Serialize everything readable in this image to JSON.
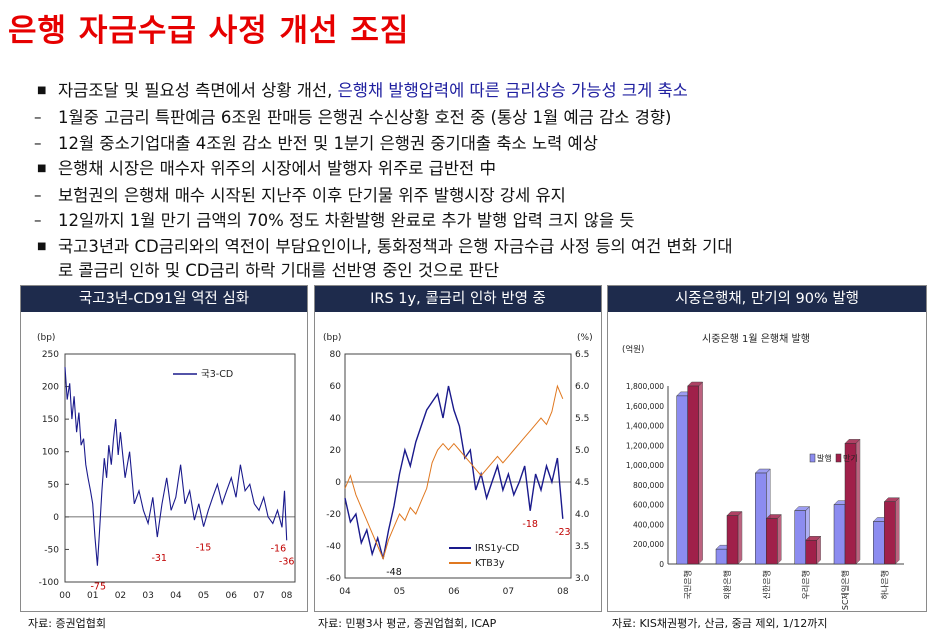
{
  "title": "은행 자금수급 사정 개선 조짐",
  "bullets": [
    {
      "marker": "square",
      "text": "자금조달 및 필요성 측면에서 상황 개선, ",
      "highlight": "은행채 발행압력에 따른 금리상승 가능성 크게 축소"
    },
    {
      "marker": "dash",
      "text": "1월중 고금리 특판예금 6조원 판매등 은행권 수신상황 호전 중 (통상 1월 예금 감소 경향)"
    },
    {
      "marker": "dash",
      "text": "12월 중소기업대출 4조원 감소 반전 및 1분기 은행권 중기대출 축소 노력 예상"
    },
    {
      "marker": "square",
      "text": "은행채 시장은 매수자 위주의 시장에서 발행자 위주로 급반전 中"
    },
    {
      "marker": "dash",
      "text": "보험권의 은행채 매수 시작된 지난주 이후 단기물 위주 발행시장 강세 유지"
    },
    {
      "marker": "dash",
      "text": "12일까지 1월 만기 금액의 70% 정도 차환발행 완료로 추가 발행 압력 크지 않을 듯"
    },
    {
      "marker": "square",
      "text": "국고3년과 CD금리와의 역전이 부담요인이나, 통화정책과 은행 자금수급 사정 등의 여건 변화 기대",
      "continuation": "로 콜금리 인하 및 CD금리 하락 기대를 선반영 중인 것으로 판단"
    }
  ],
  "panels": [
    {
      "header": "국고3년-CD91일 역전 심화",
      "source": "자료: 증권업협회"
    },
    {
      "header": "IRS 1y, 콜금리 인하 반영 중",
      "source": "자료: 민평3사 평균, 증권업협회, ICAP"
    },
    {
      "header": "시중은행채, 만기의 90% 발행",
      "source": "자료: KIS채권평가, 산금, 중금 제외, 1/12까지"
    }
  ],
  "chart_data": [
    {
      "type": "line",
      "unit_label": "(bp)",
      "ylim": [
        -100,
        250
      ],
      "yticks": [
        250,
        200,
        150,
        100,
        50,
        0,
        -50,
        -100
      ],
      "xticks": [
        "00",
        "01",
        "02",
        "03",
        "04",
        "05",
        "06",
        "07",
        "08"
      ],
      "series": [
        {
          "name": "국3-CD",
          "color": "#1a1a8c",
          "x": [
            2000.0,
            2000.08,
            2000.17,
            2000.25,
            2000.33,
            2000.42,
            2000.5,
            2000.58,
            2000.67,
            2000.75,
            2000.83,
            2000.92,
            2001.0,
            2001.08,
            2001.17,
            2001.25,
            2001.33,
            2001.42,
            2001.5,
            2001.58,
            2001.67,
            2001.75,
            2001.83,
            2001.92,
            2002.0,
            2002.17,
            2002.33,
            2002.5,
            2002.67,
            2002.83,
            2003.0,
            2003.17,
            2003.33,
            2003.5,
            2003.67,
            2003.83,
            2004.0,
            2004.17,
            2004.33,
            2004.5,
            2004.67,
            2004.83,
            2005.0,
            2005.17,
            2005.33,
            2005.5,
            2005.67,
            2005.83,
            2006.0,
            2006.17,
            2006.33,
            2006.5,
            2006.67,
            2006.83,
            2007.0,
            2007.17,
            2007.33,
            2007.5,
            2007.67,
            2007.83,
            2007.92,
            2008.0
          ],
          "y": [
            230,
            180,
            205,
            150,
            185,
            130,
            160,
            110,
            120,
            80,
            60,
            40,
            20,
            -30,
            -75,
            -20,
            40,
            90,
            60,
            110,
            80,
            120,
            150,
            95,
            130,
            60,
            100,
            20,
            40,
            10,
            -10,
            30,
            -31,
            20,
            60,
            10,
            30,
            80,
            20,
            40,
            -5,
            20,
            -15,
            10,
            30,
            50,
            20,
            40,
            60,
            30,
            80,
            40,
            50,
            20,
            10,
            30,
            0,
            -10,
            10,
            -16,
            40,
            -36
          ]
        }
      ],
      "annotations": [
        {
          "label": "-75",
          "x": 2001.2,
          "y": -75
        },
        {
          "label": "-31",
          "x": 2003.4,
          "y": -31
        },
        {
          "label": "-15",
          "x": 2005.0,
          "y": -15
        },
        {
          "label": "-16",
          "x": 2007.7,
          "y": -16
        },
        {
          "label": "-36",
          "x": 2008.0,
          "y": -36
        }
      ]
    },
    {
      "type": "line",
      "left_unit_label": "(bp)",
      "right_unit_label": "(%)",
      "ylim_left": [
        -60,
        80
      ],
      "yticks_left": [
        80,
        60,
        40,
        20,
        0,
        -20,
        -40,
        -60
      ],
      "ylim_right": [
        3.0,
        6.5
      ],
      "yticks_right": [
        "6.5",
        "6.0",
        "5.5",
        "5.0",
        "4.5",
        "4.0",
        "3.5",
        "3.0"
      ],
      "xticks": [
        "04",
        "05",
        "06",
        "07",
        "08"
      ],
      "series": [
        {
          "name": "IRS1y-CD",
          "axis": "left",
          "color": "#1a1a8c",
          "x": [
            2004.0,
            2004.1,
            2004.2,
            2004.3,
            2004.4,
            2004.5,
            2004.6,
            2004.7,
            2004.8,
            2004.9,
            2005.0,
            2005.1,
            2005.2,
            2005.3,
            2005.4,
            2005.5,
            2005.6,
            2005.7,
            2005.8,
            2005.9,
            2006.0,
            2006.1,
            2006.2,
            2006.3,
            2006.4,
            2006.5,
            2006.6,
            2006.7,
            2006.8,
            2006.9,
            2007.0,
            2007.1,
            2007.2,
            2007.3,
            2007.4,
            2007.5,
            2007.6,
            2007.7,
            2007.8,
            2007.9,
            2008.0
          ],
          "y": [
            -10,
            -25,
            -20,
            -38,
            -30,
            -45,
            -35,
            -48,
            -30,
            -15,
            5,
            20,
            10,
            25,
            35,
            45,
            50,
            55,
            40,
            60,
            45,
            35,
            15,
            20,
            -5,
            5,
            -10,
            0,
            10,
            -5,
            5,
            -8,
            0,
            10,
            -18,
            5,
            -5,
            10,
            0,
            15,
            -23
          ]
        },
        {
          "name": "KTB3y",
          "axis": "right",
          "color": "#e07820",
          "x": [
            2004.0,
            2004.1,
            2004.2,
            2004.3,
            2004.4,
            2004.5,
            2004.6,
            2004.7,
            2004.8,
            2004.9,
            2005.0,
            2005.1,
            2005.2,
            2005.3,
            2005.4,
            2005.5,
            2005.6,
            2005.7,
            2005.8,
            2005.9,
            2006.0,
            2006.1,
            2006.2,
            2006.3,
            2006.4,
            2006.5,
            2006.6,
            2006.7,
            2006.8,
            2006.9,
            2007.0,
            2007.1,
            2007.2,
            2007.3,
            2007.4,
            2007.5,
            2007.6,
            2007.7,
            2007.8,
            2007.9,
            2008.0
          ],
          "y": [
            4.4,
            4.6,
            4.3,
            4.1,
            3.9,
            3.7,
            3.5,
            3.3,
            3.6,
            3.8,
            4.0,
            3.9,
            4.1,
            4.0,
            4.2,
            4.4,
            4.8,
            5.0,
            5.1,
            5.0,
            5.1,
            5.0,
            4.9,
            4.8,
            4.7,
            4.6,
            4.7,
            4.8,
            4.9,
            4.8,
            4.9,
            5.0,
            5.1,
            5.2,
            5.3,
            5.4,
            5.5,
            5.4,
            5.6,
            6.0,
            5.8
          ]
        }
      ],
      "annotations": [
        {
          "label": "-48",
          "x": 2004.9,
          "y": -48
        },
        {
          "label": "-18",
          "x": 2007.4,
          "y": -18
        },
        {
          "label": "-23",
          "x": 2008.0,
          "y": -23
        }
      ]
    },
    {
      "type": "bar",
      "title": "시중은행 1월 은행채 발행",
      "unit_label": "(억원)",
      "ylim": [
        0,
        1800000
      ],
      "yticks": [
        "1,800,000",
        "1,600,000",
        "1,400,000",
        "1,200,000",
        "1,000,000",
        "800,000",
        "600,000",
        "400,000",
        "200,000",
        "0"
      ],
      "categories": [
        "국민은행",
        "외환은행",
        "신한은행",
        "우리은행",
        "SC제일은행",
        "하나은행"
      ],
      "series": [
        {
          "name": "발행",
          "color": "#8c8cf0",
          "values": [
            1700000,
            150000,
            920000,
            540000,
            600000,
            430000
          ]
        },
        {
          "name": "만기",
          "color": "#a0204a",
          "values": [
            1800000,
            490000,
            460000,
            240000,
            1220000,
            630000
          ]
        }
      ]
    }
  ]
}
